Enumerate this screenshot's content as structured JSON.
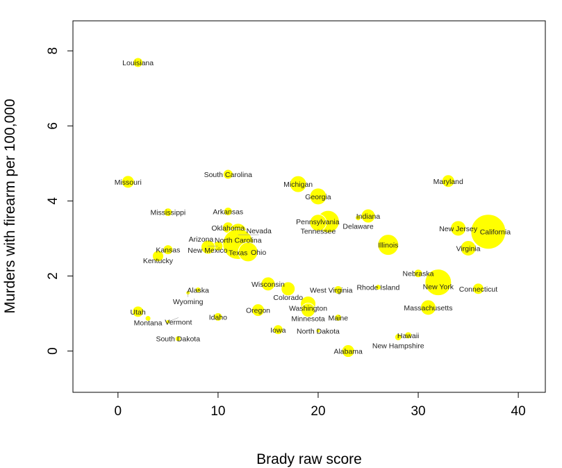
{
  "chart_data": {
    "type": "scatter",
    "xlabel": "Brady raw score",
    "ylabel": "Murders with firearm per 100,000",
    "xlim": [
      -4.5,
      42.7
    ],
    "ylim": [
      -1.1,
      8.8
    ],
    "xticks": [
      0,
      10,
      20,
      30,
      40
    ],
    "yticks": [
      0,
      2,
      4,
      6,
      8
    ],
    "grid": false,
    "point_color": "#ffff00",
    "points": [
      {
        "label": "Louisiana",
        "x": 2,
        "y": 7.69,
        "size": 7
      },
      {
        "label": "Missouri",
        "x": 1,
        "y": 4.51,
        "size": 9
      },
      {
        "label": "South Carolina",
        "x": 11,
        "y": 4.71,
        "size": 7
      },
      {
        "label": "Michigan",
        "x": 18,
        "y": 4.45,
        "size": 12
      },
      {
        "label": "Georgia",
        "x": 20,
        "y": 4.12,
        "size": 12
      },
      {
        "label": "Maryland",
        "x": 33,
        "y": 4.53,
        "size": 9
      },
      {
        "label": "Mississippi",
        "x": 5,
        "y": 3.7,
        "size": 6
      },
      {
        "label": "Arkansas",
        "x": 11,
        "y": 3.72,
        "size": 6
      },
      {
        "label": "Indiana",
        "x": 25,
        "y": 3.6,
        "size": 10
      },
      {
        "label": "Delaware",
        "x": 24,
        "y": 3.55,
        "size": 4
      },
      {
        "label": "Pennsylvania",
        "x": 21,
        "y": 3.45,
        "size": 16
      },
      {
        "label": "Tennessee",
        "x": 20,
        "y": 3.42,
        "size": 12
      },
      {
        "label": "New Jersey",
        "x": 34,
        "y": 3.27,
        "size": 11
      },
      {
        "label": "California",
        "x": 37,
        "y": 3.18,
        "size": 25
      },
      {
        "label": "Oklahoma",
        "x": 11,
        "y": 3.29,
        "size": 8
      },
      {
        "label": "North Carolina",
        "x": 12,
        "y": 3.18,
        "size": 12
      },
      {
        "label": "Nevada",
        "x": 12,
        "y": 3.1,
        "size": 7
      },
      {
        "label": "Texas",
        "x": 12,
        "y": 2.85,
        "size": 22
      },
      {
        "label": "Ohio",
        "x": 13,
        "y": 2.64,
        "size": 14
      },
      {
        "label": "New Mexico",
        "x": 10,
        "y": 2.8,
        "size": 7
      },
      {
        "label": "Arizona",
        "x": 9,
        "y": 2.77,
        "size": 10
      },
      {
        "label": "Kansas",
        "x": 5,
        "y": 2.7,
        "size": 7
      },
      {
        "label": "Kentucky",
        "x": 4,
        "y": 2.53,
        "size": 8
      },
      {
        "label": "Illinois",
        "x": 27,
        "y": 2.83,
        "size": 15
      },
      {
        "label": "Virginia",
        "x": 35,
        "y": 2.74,
        "size": 11
      },
      {
        "label": "Nebraska",
        "x": 30,
        "y": 2.07,
        "size": 6
      },
      {
        "label": "New York",
        "x": 32,
        "y": 1.83,
        "size": 19
      },
      {
        "label": "Connecticut",
        "x": 36,
        "y": 1.66,
        "size": 8
      },
      {
        "label": "Rhode Island",
        "x": 26,
        "y": 1.7,
        "size": 4
      },
      {
        "label": "West Virginia",
        "x": 22,
        "y": 1.63,
        "size": 6
      },
      {
        "label": "Wisconsin",
        "x": 15,
        "y": 1.79,
        "size": 10
      },
      {
        "label": "Colorado",
        "x": 17,
        "y": 1.66,
        "size": 10
      },
      {
        "label": "Alaska",
        "x": 8,
        "y": 1.63,
        "size": 4
      },
      {
        "label": "Wyoming",
        "x": 7,
        "y": 1.55,
        "size": 3
      },
      {
        "label": "Washington",
        "x": 19,
        "y": 1.26,
        "size": 11
      },
      {
        "label": "Minnesota",
        "x": 19,
        "y": 1.09,
        "size": 10
      },
      {
        "label": "Massachusetts",
        "x": 31,
        "y": 1.16,
        "size": 11
      },
      {
        "label": "Oregon",
        "x": 14,
        "y": 1.09,
        "size": 9
      },
      {
        "label": "Utah",
        "x": 2,
        "y": 1.05,
        "size": 8
      },
      {
        "label": "Idaho",
        "x": 10,
        "y": 0.91,
        "size": 6
      },
      {
        "label": "Maine",
        "x": 22,
        "y": 0.89,
        "size": 5
      },
      {
        "label": "Montana",
        "x": 3,
        "y": 0.87,
        "size": 4
      },
      {
        "label": "Vermont",
        "x": 5,
        "y": 0.78,
        "size": 3
      },
      {
        "label": "Iowa",
        "x": 16,
        "y": 0.57,
        "size": 7
      },
      {
        "label": "North Dakota",
        "x": 20,
        "y": 0.54,
        "size": 3
      },
      {
        "label": "Hawaii",
        "x": 29,
        "y": 0.42,
        "size": 5
      },
      {
        "label": "New Hampshire",
        "x": 28,
        "y": 0.37,
        "size": 5
      },
      {
        "label": "South Dakota",
        "x": 6,
        "y": 0.33,
        "size": 4
      },
      {
        "label": "Alabama",
        "x": 23,
        "y": 0.0,
        "size": 9
      }
    ]
  }
}
